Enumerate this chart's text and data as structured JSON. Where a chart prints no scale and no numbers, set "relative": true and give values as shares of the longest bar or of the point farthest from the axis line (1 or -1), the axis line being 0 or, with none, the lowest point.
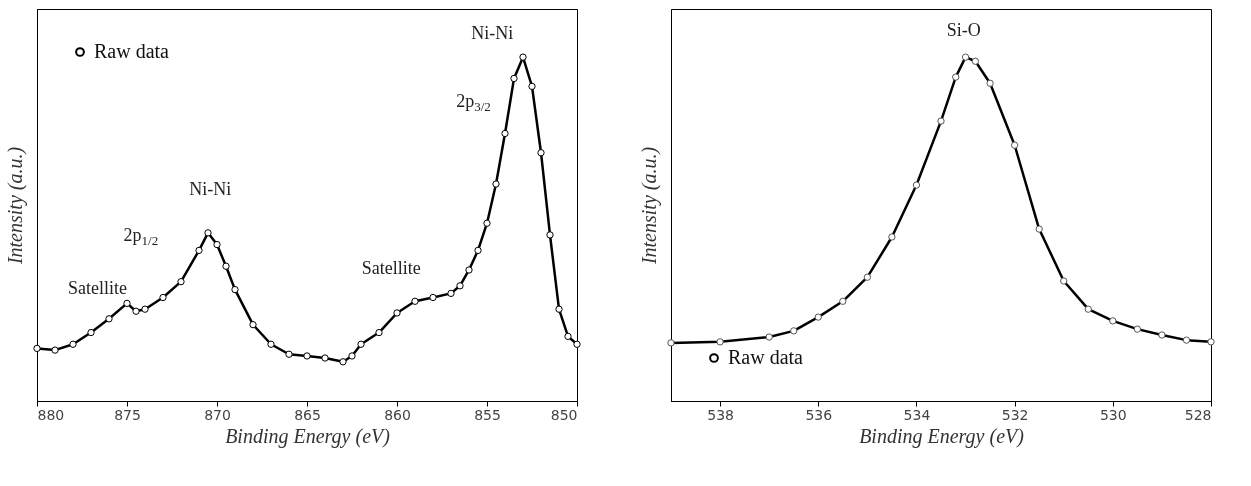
{
  "chart_data": [
    {
      "type": "line",
      "relative": true,
      "xlabel": "Binding Energy (eV)",
      "ylabel": "Intensity (a.u.)",
      "legend": "top left",
      "marker": "circle",
      "xlim": [
        880,
        850
      ],
      "xticks": [
        880,
        875,
        870,
        865,
        860,
        855,
        850
      ],
      "x": [
        880,
        879,
        878,
        877,
        876,
        875,
        874.5,
        874,
        873,
        872,
        871,
        870.5,
        870,
        869.5,
        869,
        868,
        867,
        866,
        865,
        864,
        863,
        862.5,
        862,
        861,
        860,
        859,
        858,
        857,
        856.5,
        856,
        855.5,
        855,
        854.5,
        854,
        853.5,
        853,
        852.5,
        852,
        851.5,
        851,
        850.5,
        850
      ],
      "series": [
        {
          "name": "Raw data",
          "color": "#000000",
          "values": [
            0.153,
            0.148,
            0.165,
            0.199,
            0.239,
            0.284,
            0.261,
            0.267,
            0.301,
            0.347,
            0.438,
            0.489,
            0.455,
            0.392,
            0.324,
            0.222,
            0.165,
            0.136,
            0.131,
            0.125,
            0.114,
            0.131,
            0.165,
            0.199,
            0.256,
            0.29,
            0.301,
            0.313,
            0.335,
            0.381,
            0.438,
            0.517,
            0.631,
            0.778,
            0.938,
            1,
            0.915,
            0.722,
            0.483,
            0.267,
            0.188,
            0.165
          ]
        }
      ],
      "annotations": [
        "Ni-Ni",
        "2p$_{3/2}$",
        "Ni-Ni",
        "2p$_{1/2}$",
        "Satellite",
        "Satellite"
      ]
    },
    {
      "type": "line",
      "relative": true,
      "xlabel": "Binding Energy (eV)",
      "ylabel": "Intensity (a.u.)",
      "legend": "bottom left",
      "marker": "circle",
      "xlim": [
        539,
        528
      ],
      "xticks": [
        538,
        536,
        534,
        532,
        530,
        528
      ],
      "x": [
        539,
        538,
        537,
        536.5,
        536,
        535.5,
        535,
        534.5,
        534,
        533.5,
        533.2,
        533,
        532.8,
        532.5,
        532,
        531.5,
        531,
        530.5,
        530,
        529.5,
        529,
        528.5,
        528
      ],
      "series": [
        {
          "name": "Raw data",
          "color": "#555555",
          "values": [
            0.169,
            0.172,
            0.186,
            0.204,
            0.244,
            0.29,
            0.36,
            0.477,
            0.628,
            0.814,
            0.942,
            1,
            0.988,
            0.924,
            0.744,
            0.5,
            0.349,
            0.267,
            0.233,
            0.209,
            0.192,
            0.177,
            0.172
          ]
        }
      ],
      "annotations": [
        "Si-O"
      ]
    }
  ]
}
